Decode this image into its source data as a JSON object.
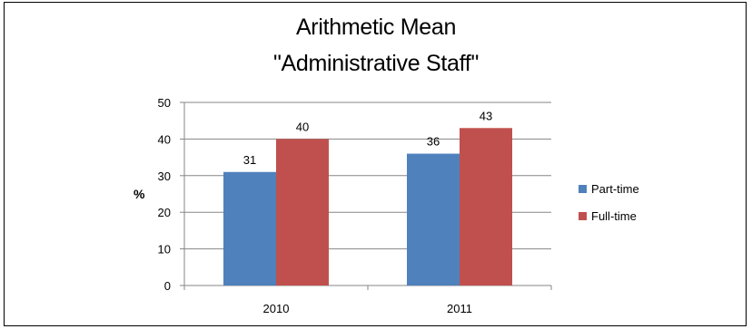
{
  "chart_data": {
    "type": "bar",
    "title": "Arithmetic Mean",
    "subtitle": "\"Administrative Staff\"",
    "ylabel": "%",
    "xlabel": "",
    "ylim": [
      0,
      50
    ],
    "yticks": [
      0,
      10,
      20,
      30,
      40,
      50
    ],
    "grid": true,
    "legend_position": "right",
    "categories": [
      "2010",
      "2011"
    ],
    "series": [
      {
        "name": "Part-time",
        "values": [
          31,
          36
        ],
        "color": "#4f81bd"
      },
      {
        "name": "Full-time",
        "values": [
          40,
          43
        ],
        "color": "#c0504d"
      }
    ]
  }
}
